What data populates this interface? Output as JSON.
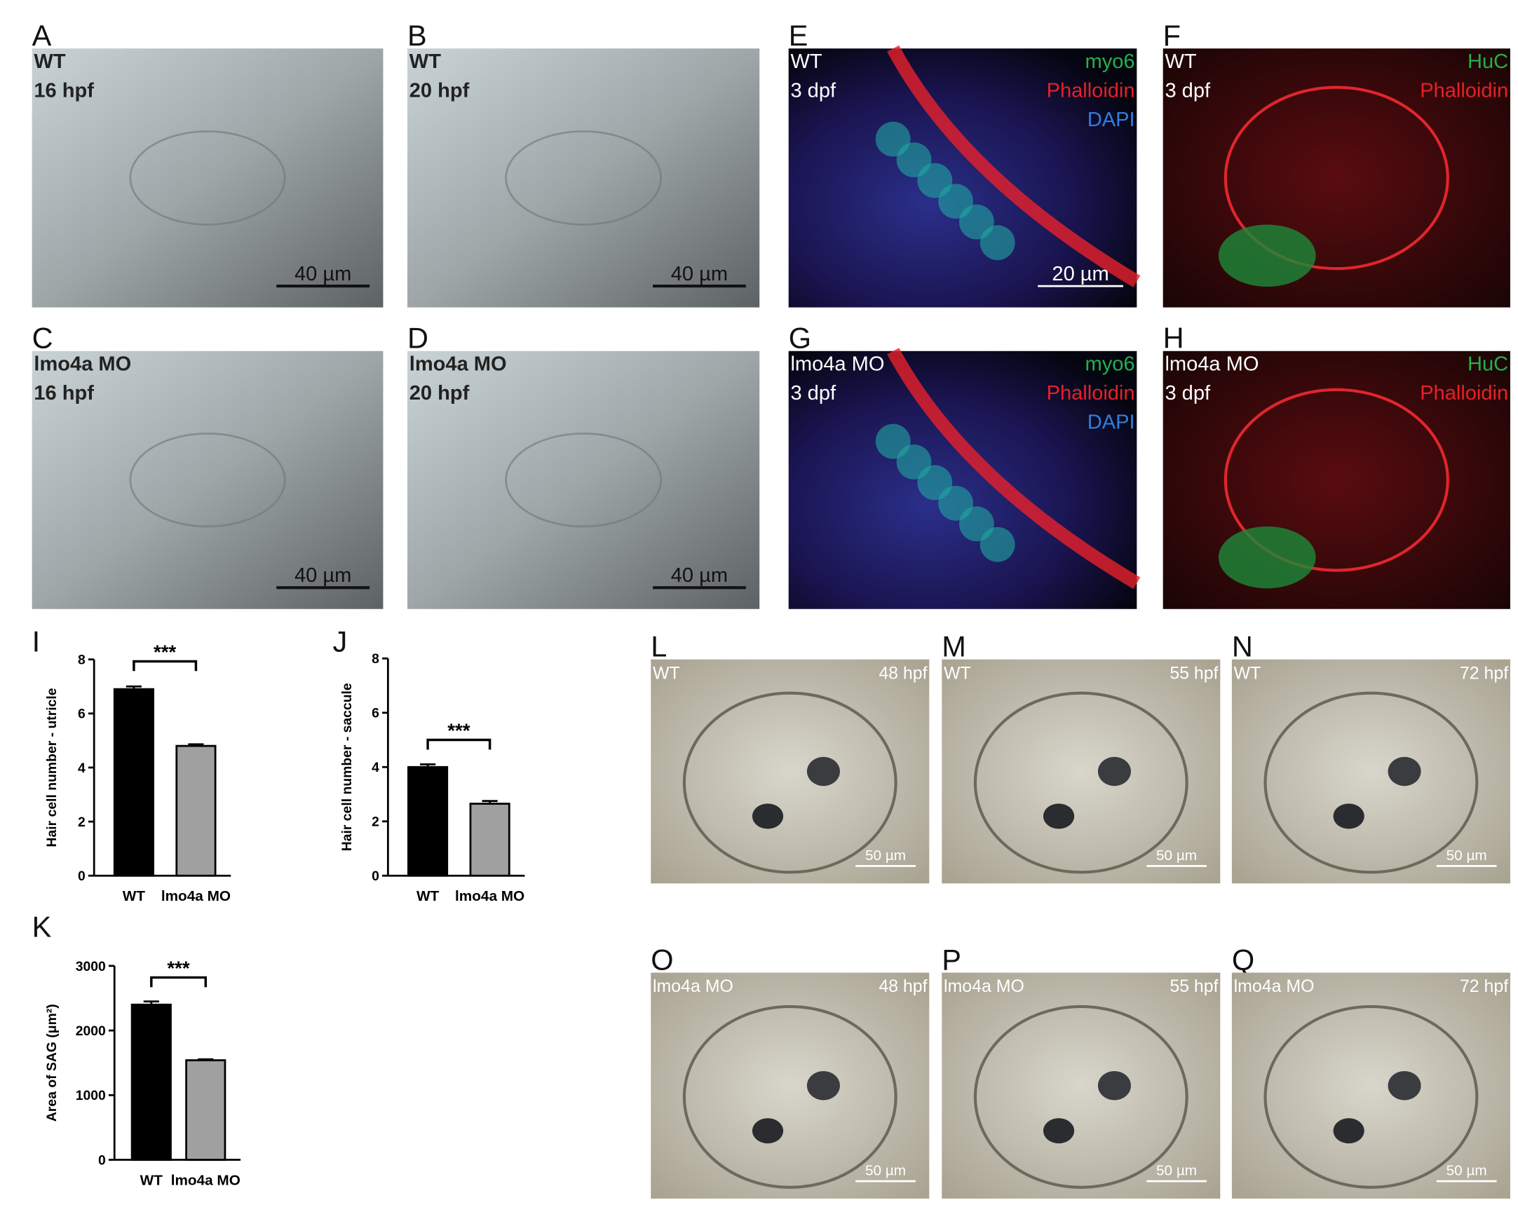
{
  "panels": [
    {
      "letter": "A",
      "kind": "dic",
      "left": [
        "WT",
        "16 hpf"
      ],
      "right": [],
      "scale": "40 µm"
    },
    {
      "letter": "B",
      "kind": "dic",
      "left": [
        "WT",
        "20 hpf"
      ],
      "right": [],
      "scale": "40 µm"
    },
    {
      "letter": "E",
      "kind": "fluo-blue",
      "left": [
        "WT",
        "3 dpf"
      ],
      "right": [
        {
          "text": "myo6",
          "color": "#22b14c"
        },
        {
          "text": "Phalloidin",
          "color": "#e8202a"
        },
        {
          "text": "DAPI",
          "color": "#2f7fe0"
        }
      ],
      "scale": "20 µm"
    },
    {
      "letter": "F",
      "kind": "fluo-red",
      "left": [
        "WT",
        "3 dpf"
      ],
      "right": [
        {
          "text": "HuC",
          "color": "#22b14c"
        },
        {
          "text": "Phalloidin",
          "color": "#e8202a"
        }
      ],
      "scale": null
    },
    {
      "letter": "C",
      "kind": "dic",
      "left": [
        "lmo4a MO",
        "16 hpf"
      ],
      "right": [],
      "scale": "40 µm"
    },
    {
      "letter": "D",
      "kind": "dic",
      "left": [
        "lmo4a MO",
        "20 hpf"
      ],
      "right": [],
      "scale": "40 µm"
    },
    {
      "letter": "G",
      "kind": "fluo-blue",
      "left": [
        "lmo4a MO",
        "3 dpf"
      ],
      "right": [
        {
          "text": "myo6",
          "color": "#22b14c"
        },
        {
          "text": "Phalloidin",
          "color": "#e8202a"
        },
        {
          "text": "DAPI",
          "color": "#2f7fe0"
        }
      ],
      "scale": null
    },
    {
      "letter": "H",
      "kind": "fluo-red",
      "left": [
        "lmo4a MO",
        "3 dpf"
      ],
      "right": [
        {
          "text": "HuC",
          "color": "#22b14c"
        },
        {
          "text": "Phalloidin",
          "color": "#e8202a"
        }
      ],
      "scale": null
    },
    {
      "letter": "L",
      "kind": "ear",
      "left": [
        "WT"
      ],
      "right": [
        {
          "text": "48 hpf",
          "color": "#ffffff"
        }
      ],
      "scale": "50 µm"
    },
    {
      "letter": "M",
      "kind": "ear",
      "left": [
        "WT"
      ],
      "right": [
        {
          "text": "55 hpf",
          "color": "#ffffff"
        }
      ],
      "scale": "50 µm"
    },
    {
      "letter": "N",
      "kind": "ear",
      "left": [
        "WT"
      ],
      "right": [
        {
          "text": "72 hpf",
          "color": "#ffffff"
        }
      ],
      "scale": "50 µm"
    },
    {
      "letter": "O",
      "kind": "ear",
      "left": [
        "lmo4a MO"
      ],
      "right": [
        {
          "text": "48 hpf",
          "color": "#ffffff"
        }
      ],
      "scale": "50 µm"
    },
    {
      "letter": "P",
      "kind": "ear",
      "left": [
        "lmo4a MO"
      ],
      "right": [
        {
          "text": "55 hpf",
          "color": "#ffffff"
        }
      ],
      "scale": "50 µm"
    },
    {
      "letter": "Q",
      "kind": "ear",
      "left": [
        "lmo4a MO"
      ],
      "right": [
        {
          "text": "72 hpf",
          "color": "#ffffff"
        }
      ],
      "scale": "50 µm"
    }
  ],
  "chart_data": [
    {
      "type": "bar",
      "letter": "I",
      "ylabel": "Hair cell number - utricle",
      "categories": [
        "WT",
        "lmo4a MO"
      ],
      "values": [
        6.9,
        4.8
      ],
      "errors": [
        0.1,
        0.06
      ],
      "colors": [
        "#000000",
        "#a0a0a0"
      ],
      "ylim": [
        0,
        8
      ],
      "yticks": [
        0,
        2,
        4,
        6,
        8
      ],
      "annotation": "***"
    },
    {
      "type": "bar",
      "letter": "J",
      "ylabel": "Hair cell number - saccule",
      "categories": [
        "WT",
        "lmo4a MO"
      ],
      "values": [
        4.0,
        2.65
      ],
      "errors": [
        0.1,
        0.1
      ],
      "colors": [
        "#000000",
        "#a0a0a0"
      ],
      "ylim": [
        0,
        8
      ],
      "yticks": [
        0,
        2,
        4,
        6,
        8
      ],
      "annotation": "***"
    },
    {
      "type": "bar",
      "letter": "K",
      "ylabel": "Area of SAG (μm²)",
      "categories": [
        "WT",
        "lmo4a MO"
      ],
      "values": [
        2400,
        1540
      ],
      "errors": [
        50,
        15
      ],
      "colors": [
        "#000000",
        "#a0a0a0"
      ],
      "ylim": [
        0,
        3000
      ],
      "yticks": [
        0,
        1000,
        2000,
        3000
      ],
      "annotation": "***"
    }
  ]
}
